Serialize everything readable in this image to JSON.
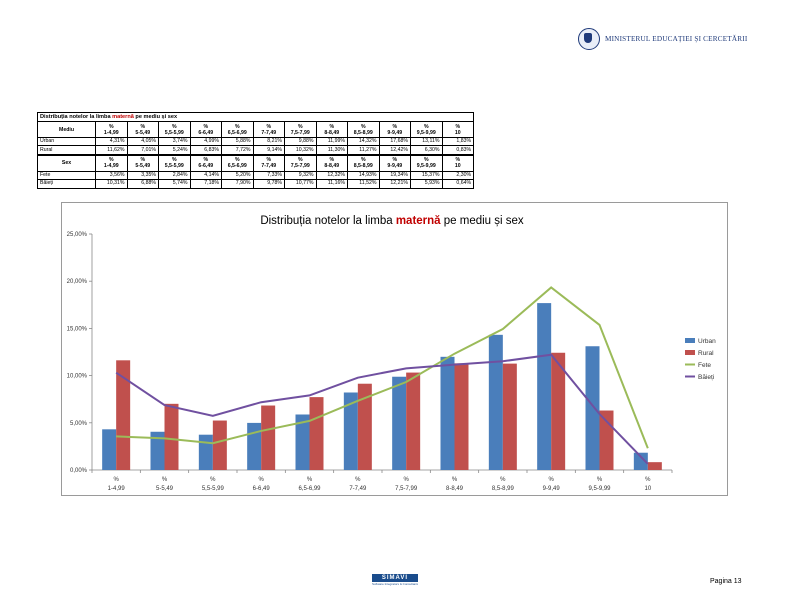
{
  "header": {
    "ministry": "MINISTERUL EDUCAȚIEI ȘI CERCETĂRII"
  },
  "table": {
    "title_part1": "Distribuția notelor  la limba ",
    "title_highlight": "maternă",
    "title_part2": " pe mediu și sex",
    "row_label_1": "Mediu",
    "row_label_2": "Sex",
    "pct": "%",
    "columns": [
      "1-4,99",
      "5-5,49",
      "5,5-5,99",
      "6-6,49",
      "6,5-6,99",
      "7-7,49",
      "7,5-7,99",
      "8-8,49",
      "8,5-8,99",
      "9-9,49",
      "9,5-9,99",
      "10"
    ],
    "rows_mediu": [
      {
        "label": "Urban",
        "values": [
          "4,31%",
          "4,05%",
          "3,74%",
          "4,99%",
          "5,88%",
          "8,21%",
          "9,88%",
          "11,99%",
          "14,32%",
          "17,68%",
          "13,11%",
          "1,83%"
        ]
      },
      {
        "label": "Rural",
        "values": [
          "11,62%",
          "7,01%",
          "5,24%",
          "6,83%",
          "7,72%",
          "9,14%",
          "10,32%",
          "11,30%",
          "11,27%",
          "12,42%",
          "6,30%",
          "0,83%"
        ]
      }
    ],
    "rows_sex": [
      {
        "label": "Fete",
        "values": [
          "3,56%",
          "3,35%",
          "2,84%",
          "4,14%",
          "5,20%",
          "7,33%",
          "9,32%",
          "12,32%",
          "14,93%",
          "19,34%",
          "15,37%",
          "2,30%"
        ]
      },
      {
        "label": "Băieți",
        "values": [
          "10,31%",
          "6,88%",
          "5,74%",
          "7,18%",
          "7,90%",
          "9,78%",
          "10,77%",
          "11,16%",
          "11,52%",
          "12,21%",
          "5,93%",
          "0,64%"
        ]
      }
    ]
  },
  "chart_data": {
    "type": "bar",
    "title_part1": "Distribuția notelor la limba ",
    "title_highlight": "maternă",
    "title_part2": " pe mediu și sex",
    "tick_prefix": "%",
    "categories": [
      "1-4,99",
      "5-5,49",
      "5,5-5,99",
      "6-6,49",
      "6,5-6,99",
      "7-7,49",
      "7,5-7,99",
      "8-8,49",
      "8,5-8,99",
      "9-9,49",
      "9,5-9,99",
      "10"
    ],
    "y_ticks": [
      "0,00%",
      "5,00%",
      "10,00%",
      "15,00%",
      "20,00%",
      "25,00%"
    ],
    "ylim": [
      0,
      25
    ],
    "legend_position": "right",
    "series": [
      {
        "name": "Urban",
        "kind": "bar",
        "color": "#4a7ebb",
        "values": [
          4.31,
          4.05,
          3.74,
          4.99,
          5.88,
          8.21,
          9.88,
          11.99,
          14.32,
          17.68,
          13.11,
          1.83
        ]
      },
      {
        "name": "Rural",
        "kind": "bar",
        "color": "#c0504d",
        "values": [
          11.62,
          7.01,
          5.24,
          6.83,
          7.72,
          9.14,
          10.32,
          11.3,
          11.27,
          12.42,
          6.3,
          0.83
        ]
      },
      {
        "name": "Fete",
        "kind": "line",
        "color": "#9bbb59",
        "values": [
          3.56,
          3.35,
          2.84,
          4.14,
          5.2,
          7.33,
          9.32,
          12.32,
          14.93,
          19.34,
          15.37,
          2.3
        ]
      },
      {
        "name": "Băieți",
        "kind": "line",
        "color": "#7050a0",
        "values": [
          10.31,
          6.88,
          5.74,
          7.18,
          7.9,
          9.78,
          10.77,
          11.16,
          11.52,
          12.21,
          5.93,
          0.64
        ]
      }
    ]
  },
  "footer": {
    "logo_text": "SIMAVI",
    "logo_tagline": "Software Integrators & Consultants",
    "page": "Pagina 13"
  }
}
